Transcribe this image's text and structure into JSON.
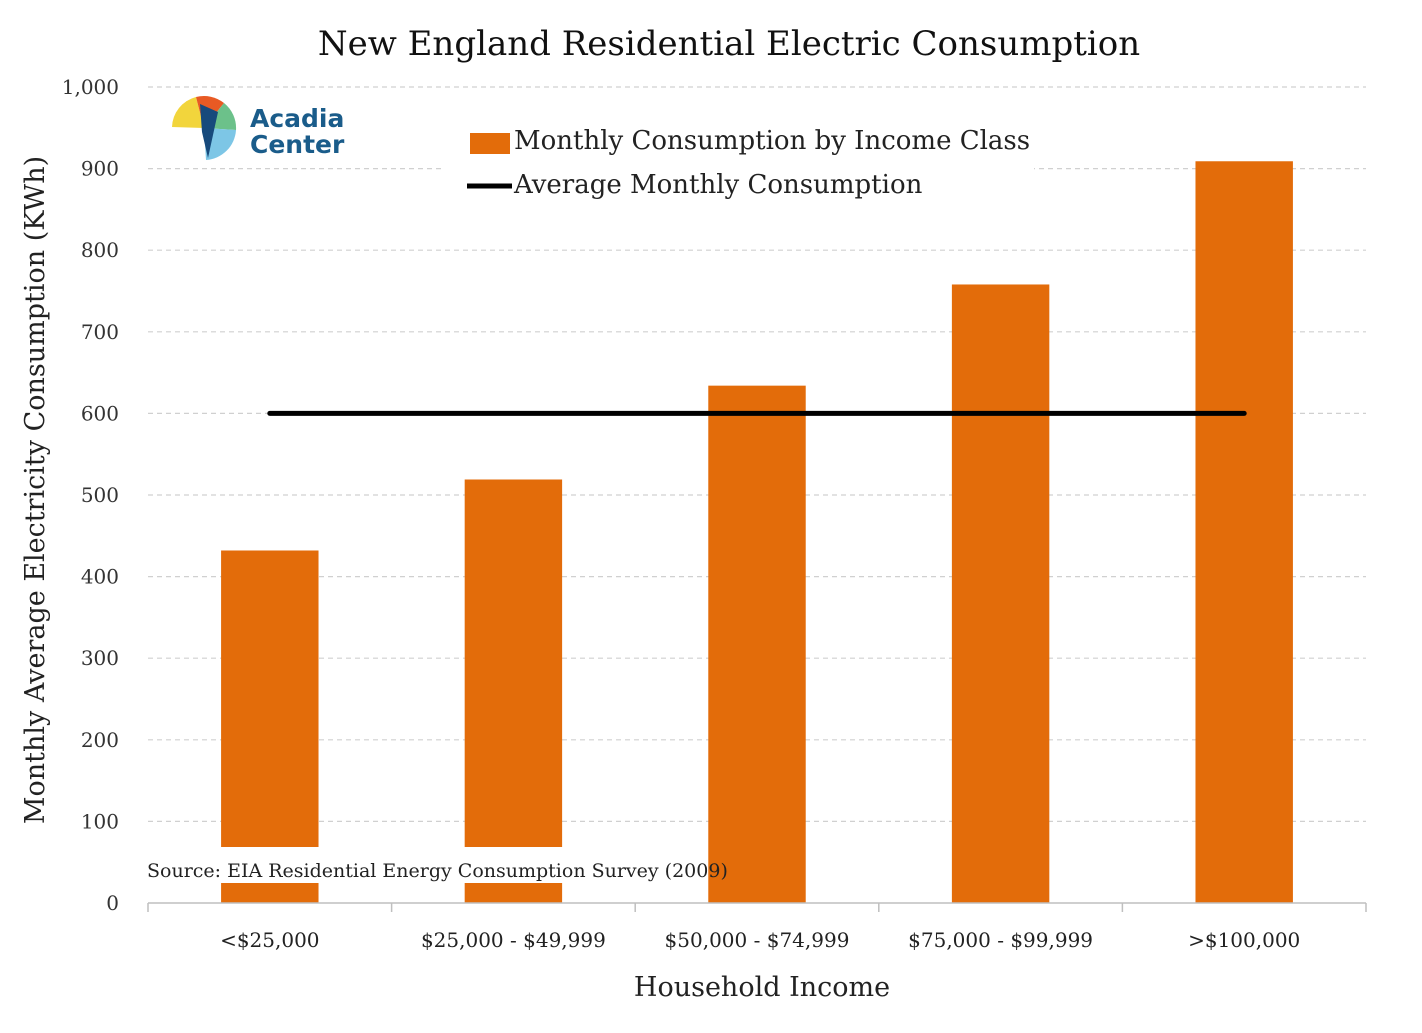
{
  "chart_data": {
    "type": "bar",
    "title": "New England Residential Electric Consumption",
    "xlabel": "Household Income",
    "ylabel": "Monthly Average Electricity Consumption  (KWh)",
    "categories": [
      "<$25,000",
      "$25,000 - $49,999",
      "$50,000 - $74,999",
      "$75,000 - $99,999",
      ">$100,000"
    ],
    "series": [
      {
        "name": "Monthly Consumption by Income Class",
        "type": "bar",
        "color": "#e36c0a",
        "values": [
          432,
          519,
          634,
          758,
          909
        ]
      },
      {
        "name": "Average Monthly Consumption",
        "type": "line",
        "color": "#000000",
        "values": [
          600,
          600,
          600,
          600,
          600
        ]
      }
    ],
    "ylim": [
      0,
      1000
    ],
    "yticks": [
      0,
      100,
      200,
      300,
      400,
      500,
      600,
      700,
      800,
      900,
      1000
    ],
    "ytick_labels": [
      "0",
      "100",
      "200",
      "300",
      "400",
      "500",
      "600",
      "700",
      "800",
      "900",
      "1,000"
    ],
    "grid": "horizontal dashed",
    "legend_position": "top-center",
    "source_note": "Source: EIA Residential Energy Consumption Survey (2009)"
  },
  "logo": {
    "line1": "Acadia",
    "line2": "Center",
    "text_color": "#1a5c8a"
  }
}
